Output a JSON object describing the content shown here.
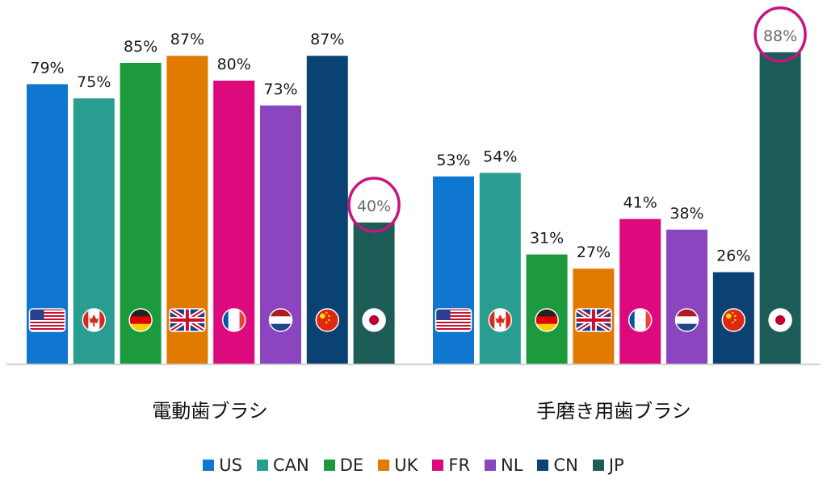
{
  "chart_data": {
    "type": "bar",
    "categories": [
      "電動歯ブラシ",
      "手磨き用歯ブラシ"
    ],
    "ylim": [
      0,
      100
    ],
    "series": [
      {
        "name": "US",
        "values": [
          79,
          53
        ],
        "color": "#0f77d0"
      },
      {
        "name": "CAN",
        "values": [
          75,
          54
        ],
        "color": "#2a9d91"
      },
      {
        "name": "DE",
        "values": [
          85,
          31
        ],
        "color": "#1e9a3e"
      },
      {
        "name": "UK",
        "values": [
          87,
          27
        ],
        "color": "#e07b00"
      },
      {
        "name": "FR",
        "values": [
          80,
          41
        ],
        "color": "#dc0a7c"
      },
      {
        "name": "NL",
        "values": [
          73,
          38
        ],
        "color": "#8b45be"
      },
      {
        "name": "CN",
        "values": [
          87,
          26
        ],
        "color": "#0a4274"
      },
      {
        "name": "JP",
        "values": [
          40,
          88
        ],
        "color": "#1c5e57"
      }
    ],
    "data_labels": [
      [
        "79%",
        "75%",
        "85%",
        "87%",
        "80%",
        "73%",
        "87%",
        "40%"
      ],
      [
        "53%",
        "54%",
        "31%",
        "27%",
        "41%",
        "38%",
        "26%",
        "88%"
      ]
    ],
    "highlighted": [
      {
        "category_index": 0,
        "series_index": 7
      },
      {
        "category_index": 1,
        "series_index": 7
      }
    ],
    "highlight_color": "#c8147e",
    "flag_icons": [
      "us-flag-icon",
      "canada-flag-icon",
      "germany-flag-icon",
      "uk-flag-icon",
      "france-flag-icon",
      "netherlands-flag-icon",
      "china-flag-icon",
      "japan-flag-icon"
    ],
    "legend_position": "bottom"
  }
}
